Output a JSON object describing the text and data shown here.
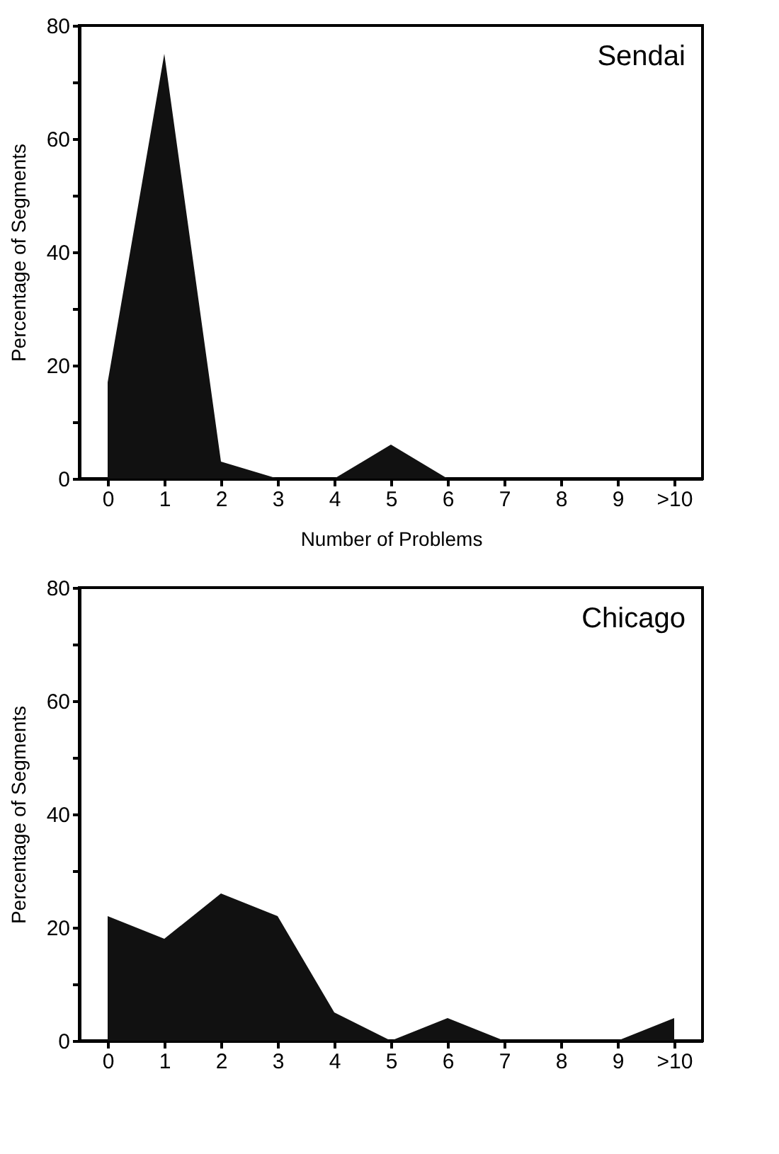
{
  "chart_data": [
    {
      "type": "area",
      "title": "Sendai",
      "xlabel": "Number of Problems",
      "ylabel": "Percentage of Segments",
      "categories": [
        "0",
        "1",
        "2",
        "3",
        "4",
        "5",
        "6",
        "7",
        "8",
        "9",
        ">10"
      ],
      "series": [
        {
          "color": "#111111",
          "values": [
            17,
            75,
            3,
            0,
            0,
            6,
            0,
            0,
            0,
            0,
            0
          ]
        }
      ],
      "ylim": [
        0,
        80
      ],
      "yticks": [
        0,
        {
          "value": 10,
          "label": null
        },
        20,
        {
          "value": 30,
          "label": null
        },
        40,
        {
          "value": 50,
          "label": null
        },
        60,
        {
          "value": 70,
          "label": null
        },
        80
      ],
      "grid": false
    },
    {
      "type": "area",
      "title": "Chicago",
      "ylabel": "Percentage of Segments",
      "categories": [
        "0",
        "1",
        "2",
        "3",
        "4",
        "5",
        "6",
        "7",
        "8",
        "9",
        ">10"
      ],
      "series": [
        {
          "color": "#111111",
          "values": [
            22,
            18,
            26,
            22,
            5,
            0,
            4,
            0,
            0,
            0,
            4
          ]
        }
      ],
      "ylim": [
        0,
        80
      ],
      "yticks": [
        0,
        {
          "value": 10,
          "label": null
        },
        20,
        {
          "value": 30,
          "label": null
        },
        40,
        {
          "value": 50,
          "label": null
        },
        60,
        {
          "value": 70,
          "label": null
        },
        80
      ],
      "grid": false
    }
  ]
}
